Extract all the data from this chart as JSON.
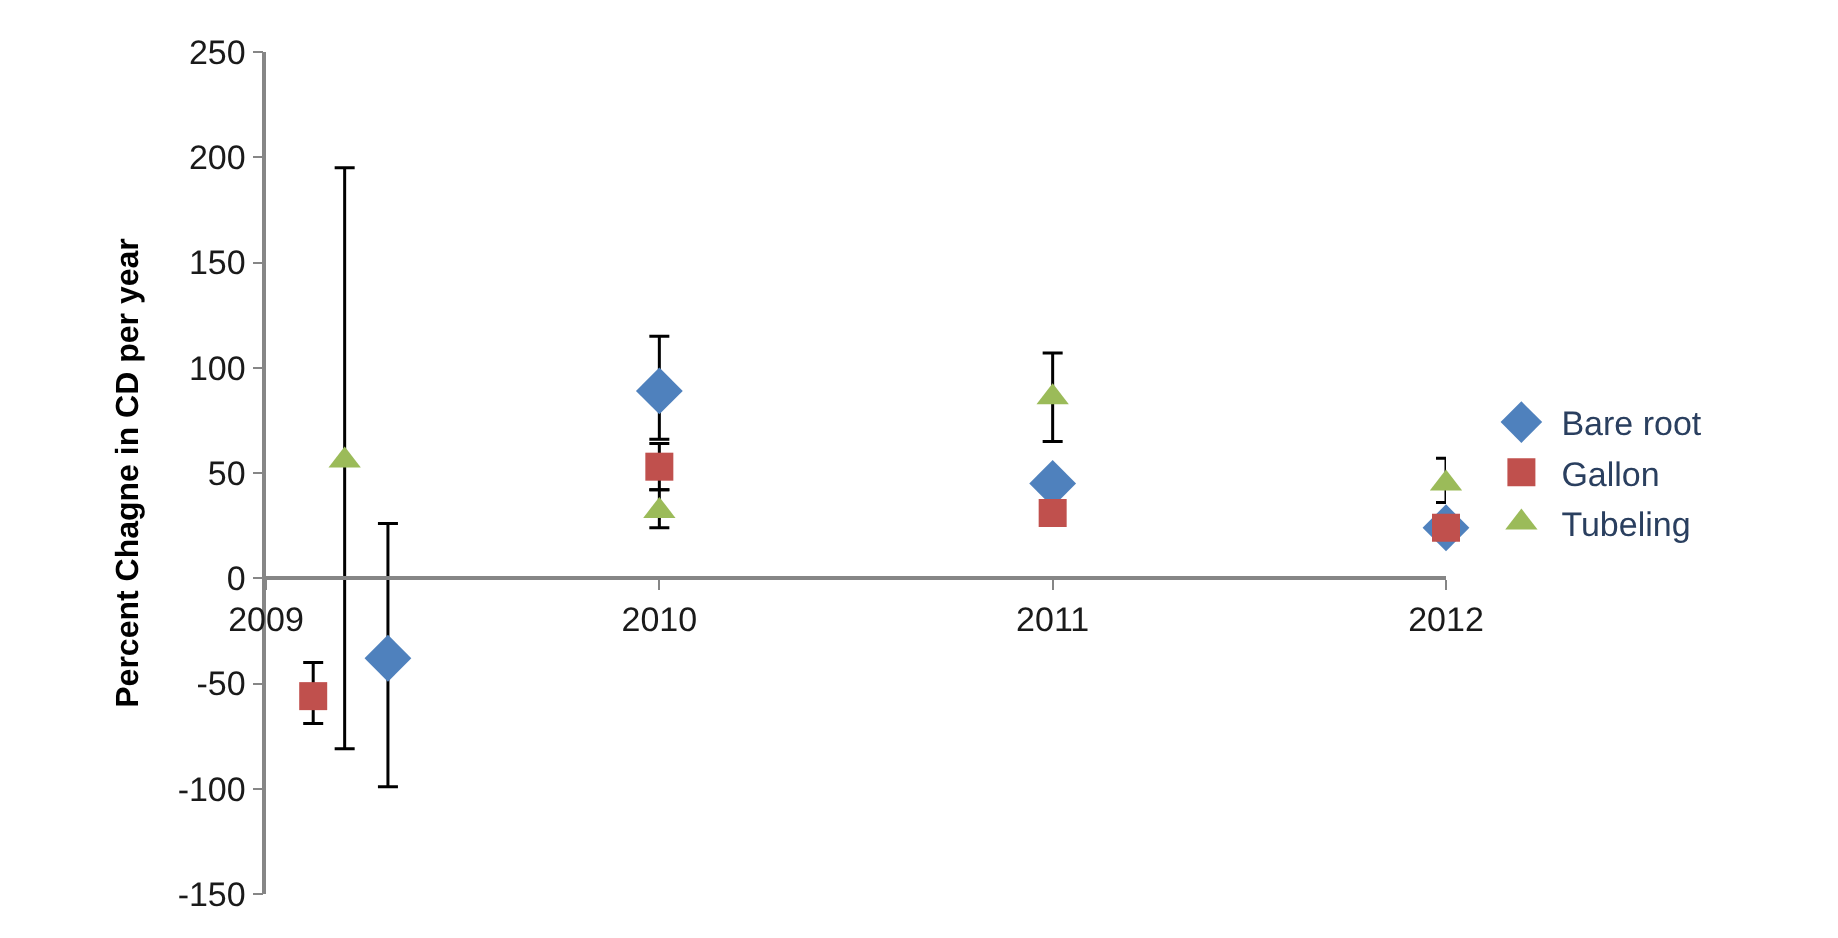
{
  "chart_data": {
    "type": "scatter",
    "ylabel": "Percent Chagne in CD per year",
    "xlim": [
      2009,
      2012
    ],
    "xticks": [
      2009,
      2010,
      2011,
      2012
    ],
    "ylim": [
      -150,
      250
    ],
    "yticks": [
      -150,
      -100,
      -50,
      0,
      50,
      100,
      150,
      200,
      250
    ],
    "legend": "right",
    "series": [
      {
        "name": "Bare root",
        "color": "#4f81bd",
        "marker": "diamond",
        "x": [
          2009.31,
          2010,
          2011,
          2012
        ],
        "values": [
          -38,
          89,
          45,
          24
        ],
        "errors": [
          [
            -99,
            26
          ],
          [
            66,
            115
          ],
          null,
          null
        ]
      },
      {
        "name": "Gallon",
        "color": "#c0504d",
        "marker": "square",
        "x": [
          2009.12,
          2010,
          2011,
          2012
        ],
        "values": [
          -56,
          53,
          31,
          24
        ],
        "errors": [
          [
            -69,
            -40
          ],
          [
            42,
            64
          ],
          null,
          null
        ]
      },
      {
        "name": "Tubeling",
        "color": "#9bbb59",
        "marker": "triangle",
        "x": [
          2009.2,
          2010,
          2011,
          2012
        ],
        "values": [
          56,
          32,
          86,
          45
        ],
        "errors": [
          [
            -81,
            195
          ],
          [
            24,
            42
          ],
          [
            65,
            107
          ],
          [
            36,
            57
          ]
        ]
      }
    ]
  }
}
